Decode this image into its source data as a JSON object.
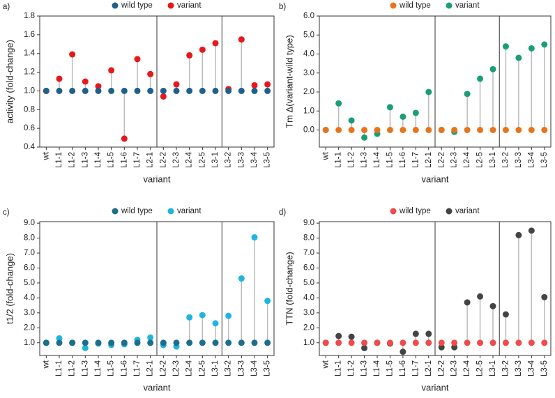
{
  "chart_data": [
    {
      "type": "dumbbell",
      "label": "a)",
      "y_label": "activity (fold-change)",
      "x_label": "variant",
      "categories": [
        "wt",
        "L1-1",
        "L1-2",
        "L1-3",
        "L1-4",
        "L1-5",
        "L1-6",
        "L1-7",
        "L2-1",
        "L2-2",
        "L2-3",
        "L2-4",
        "L2-5",
        "L3-1",
        "L3-2",
        "L3-3",
        "L3-4",
        "L3-5"
      ],
      "series": [
        {
          "name": "wild type",
          "color": "#1f5f8b",
          "values": [
            1,
            1,
            1,
            1,
            1,
            1,
            1,
            1,
            1,
            1,
            1,
            1,
            1,
            1,
            1,
            1,
            1,
            1
          ]
        },
        {
          "name": "variant",
          "color": "#e8171b",
          "values": [
            1,
            1.13,
            1.39,
            1.1,
            1.05,
            1.22,
            0.49,
            1.34,
            1.18,
            0.94,
            1.07,
            1.38,
            1.44,
            1.51,
            1.02,
            1.55,
            1.06,
            1.07
          ]
        }
      ],
      "ylim": [
        0.4,
        1.8
      ],
      "yticks": [
        0.4,
        0.6,
        0.8,
        {
          "value": 1,
          "label": "1.0"
        },
        1.2,
        1.4,
        1.6,
        1.8
      ],
      "grid": false
    },
    {
      "type": "dumbbell",
      "label": "b)",
      "y_label": "Tm Δ(variant-wild type)",
      "x_label": "variant",
      "categories": [
        "wt",
        "L1-1",
        "L1-2",
        "L1-3",
        "L1-4",
        "L1-5",
        "L1-6",
        "L1-7",
        "L2-1",
        "L2-2",
        "L2-3",
        "L2-4",
        "L2-5",
        "L3-1",
        "L3-2",
        "L3-3",
        "L3-4",
        "L3-5"
      ],
      "series": [
        {
          "name": "wild type",
          "color": "#e8731a",
          "values": [
            0,
            0,
            0,
            0,
            0,
            0,
            0,
            0,
            0,
            0,
            0,
            0,
            0,
            0,
            0,
            0,
            0,
            0
          ]
        },
        {
          "name": "variant",
          "color": "#1a9e77",
          "values": [
            0,
            1.4,
            0.5,
            -0.4,
            -0.2,
            1.2,
            0.7,
            0.9,
            2.0,
            0,
            -0.1,
            1.9,
            2.7,
            3.2,
            4.4,
            3.8,
            4.3,
            4.5
          ]
        }
      ],
      "ylim": [
        -0.9,
        6
      ],
      "yticks": [
        {
          "value": 0,
          "label": "0.0"
        },
        {
          "value": 1,
          "label": "1.0"
        },
        {
          "value": 2,
          "label": "2.0"
        },
        {
          "value": 3,
          "label": "3.0"
        },
        {
          "value": 4,
          "label": "4.0"
        },
        {
          "value": 5,
          "label": "5.0"
        },
        {
          "value": 6,
          "label": "6.0"
        }
      ],
      "grid": false
    },
    {
      "type": "dumbbell",
      "label": "c)",
      "y_label": "t1/2 (fold-change)",
      "x_label": "variant",
      "categories": [
        "wt",
        "L1-1",
        "L1-2",
        "L1-3",
        "L1-4",
        "L1-5",
        "L1-6",
        "L1-7",
        "L2-1",
        "L2-2",
        "L2-3",
        "L2-4",
        "L2-5",
        "L3-1",
        "L3-2",
        "L3-3",
        "L3-4",
        "L3-5"
      ],
      "series": [
        {
          "name": "wild type",
          "color": "#1c6e8c",
          "values": [
            1,
            1,
            1,
            1,
            1,
            1,
            1,
            1,
            1,
            1,
            1,
            1,
            1,
            1,
            1,
            1,
            1,
            1
          ]
        },
        {
          "name": "variant",
          "color": "#1fb5e0",
          "values": [
            1,
            1.3,
            1.0,
            0.65,
            0.95,
            0.85,
            0.9,
            1.2,
            1.35,
            0.85,
            0.75,
            2.7,
            2.85,
            2.3,
            2.8,
            5.3,
            8.05,
            3.8
          ]
        }
      ],
      "ylim": [
        0.15,
        9.1
      ],
      "yticks": [
        {
          "value": 1,
          "label": "1.0"
        },
        {
          "value": 2,
          "label": "2.0"
        },
        {
          "value": 3,
          "label": "3.0"
        },
        {
          "value": 4,
          "label": "4.0"
        },
        {
          "value": 5,
          "label": "5.0"
        },
        {
          "value": 6,
          "label": "6.0"
        },
        {
          "value": 7,
          "label": "7.0"
        },
        {
          "value": 8,
          "label": "8.0"
        },
        {
          "value": 9,
          "label": "9.0"
        }
      ],
      "grid": false
    },
    {
      "type": "dumbbell",
      "label": "d)",
      "y_label": "TTN (fold-change)",
      "x_label": "variant",
      "categories": [
        "wt",
        "L1-1",
        "L1-2",
        "L1-3",
        "L1-4",
        "L1-5",
        "L1-6",
        "L1-7",
        "L2-1",
        "L2-2",
        "L2-3",
        "L2-4",
        "L2-5",
        "L3-1",
        "L3-2",
        "L3-3",
        "L3-4",
        "L3-5"
      ],
      "series": [
        {
          "name": "wild type",
          "color": "#f04a4a",
          "values": [
            1,
            1,
            1,
            1,
            1,
            1,
            1,
            1,
            1,
            1,
            1,
            1,
            1,
            1,
            1,
            1,
            1,
            1
          ]
        },
        {
          "name": "variant",
          "color": "#444444",
          "values": [
            1,
            1.45,
            1.4,
            0.65,
            1.0,
            0.95,
            0.4,
            1.6,
            1.6,
            0.7,
            0.7,
            3.7,
            4.1,
            3.45,
            2.9,
            8.2,
            8.5,
            4.05
          ]
        }
      ],
      "ylim": [
        0.15,
        9.1
      ],
      "yticks": [
        {
          "value": 1,
          "label": "1.0"
        },
        {
          "value": 2,
          "label": "2.0"
        },
        {
          "value": 3,
          "label": "3.0"
        },
        {
          "value": 4,
          "label": "4.0"
        },
        {
          "value": 5,
          "label": "5.0"
        },
        {
          "value": 6,
          "label": "6.0"
        },
        {
          "value": 7,
          "label": "7.0"
        },
        {
          "value": 8,
          "label": "8.0"
        },
        {
          "value": 9,
          "label": "9.0"
        }
      ],
      "grid": false
    }
  ]
}
